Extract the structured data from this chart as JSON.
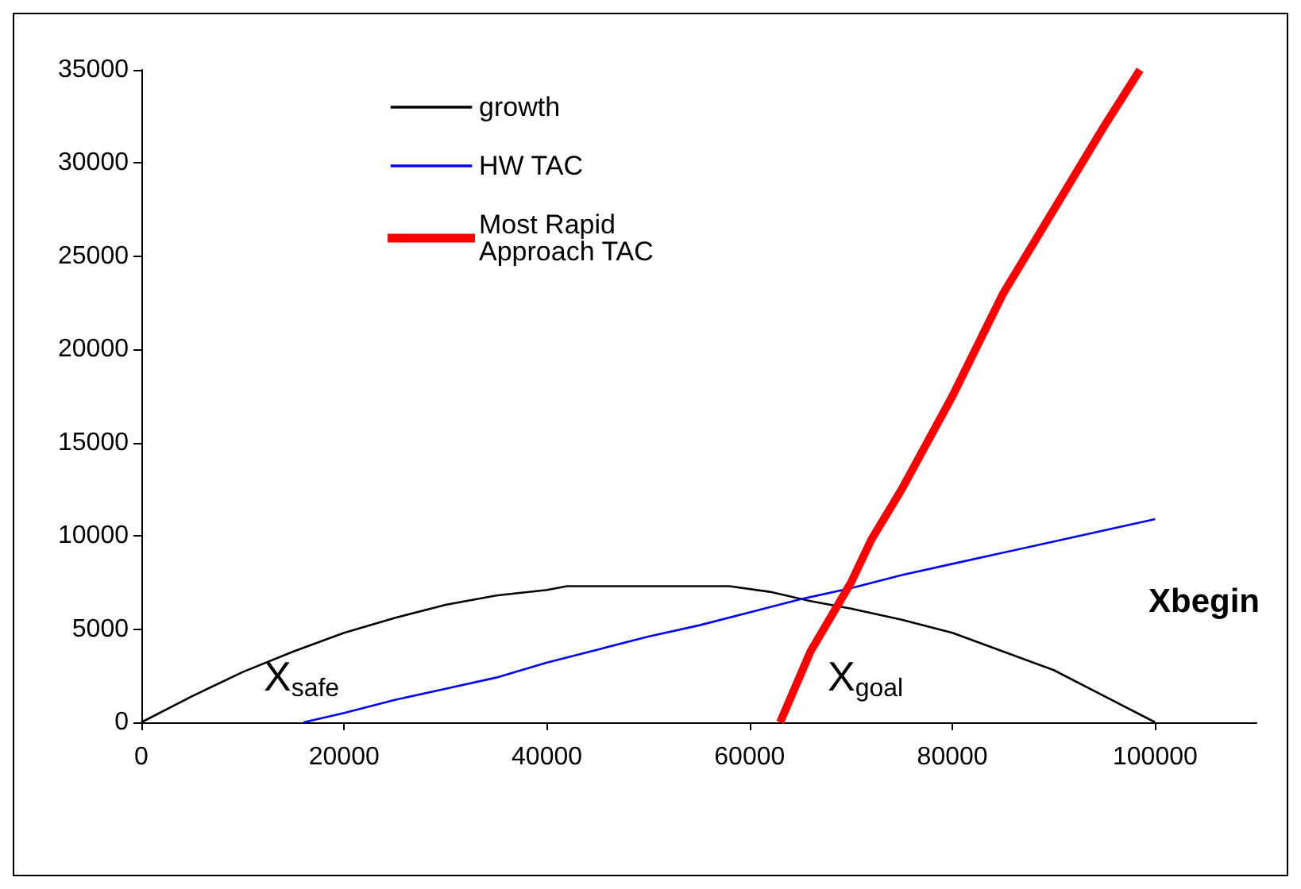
{
  "chart_data": {
    "type": "line",
    "xlim": [
      0,
      110000
    ],
    "xticks": [
      0,
      20000,
      40000,
      60000,
      80000,
      100000
    ],
    "ylim": [
      0,
      35000
    ],
    "yticks": [
      0,
      5000,
      10000,
      15000,
      20000,
      25000,
      30000,
      35000
    ],
    "grid": false,
    "legend": "top",
    "marker": "none",
    "line_style": "solid",
    "series": [
      {
        "name": "growth",
        "color": "#000000",
        "x": [
          0,
          5000,
          10000,
          15000,
          20000,
          25000,
          30000,
          35000,
          40000,
          42000,
          58000,
          62000,
          66000,
          70000,
          75000,
          80000,
          85000,
          90000,
          95000,
          100000
        ],
        "values": [
          0,
          1400,
          2700,
          3800,
          4800,
          5600,
          6300,
          6800,
          7100,
          7300,
          7300,
          7000,
          6500,
          6100,
          5500,
          4800,
          3800,
          2800,
          1400,
          0
        ]
      },
      {
        "name": "HW TAC",
        "color": "#0000ff",
        "x": [
          16000,
          20000,
          25000,
          30000,
          35000,
          40000,
          45000,
          50000,
          55000,
          60000,
          65000,
          70000,
          75000,
          80000,
          90000,
          100000
        ],
        "values": [
          0,
          500,
          1200,
          1800,
          2400,
          3200,
          3900,
          4600,
          5200,
          5900,
          6600,
          7200,
          7900,
          8500,
          9700,
          10900
        ]
      },
      {
        "name": "Most Rapid Approach TAC",
        "color": "#ff0000",
        "x": [
          63000,
          66000,
          70000,
          72000,
          75000,
          80000,
          85000,
          90000,
          95000,
          98500
        ],
        "values": [
          0,
          3800,
          7500,
          9800,
          12500,
          17500,
          23000,
          27500,
          32000,
          35000
        ]
      }
    ],
    "annotations": [
      "X$_{safe}$",
      "X$_{goal}$",
      "Xbegin"
    ]
  }
}
